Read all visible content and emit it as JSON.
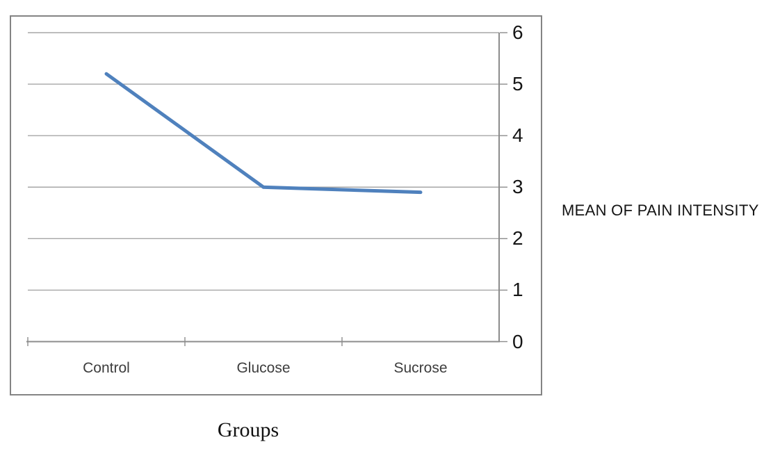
{
  "chart_data": {
    "type": "line",
    "categories": [
      "Control",
      "Glucose",
      "Sucrose"
    ],
    "series": [
      {
        "name": "Mean of pain intensity",
        "values": [
          5.2,
          3.0,
          2.9
        ],
        "color": "#4F81BD"
      }
    ],
    "title": "",
    "xlabel": "Groups",
    "ylabel": "MEAN OF PAIN INTENSITY",
    "ylim": [
      0,
      6
    ],
    "yticks": [
      0,
      1,
      2,
      3,
      4,
      5,
      6
    ],
    "grid": true,
    "y_axis_side": "right",
    "legend": "none",
    "colors": {
      "line": "#4F81BD",
      "gridline": "#A6A6A6",
      "axis": "#8C8C8C",
      "frame_border": "#848484",
      "tick_label": "#151515",
      "category_label": "#3D3D3D",
      "background": "#FFFFFF"
    }
  }
}
